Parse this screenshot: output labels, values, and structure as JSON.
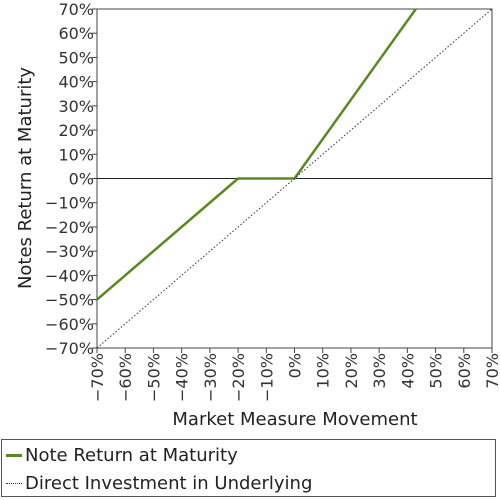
{
  "chart_data": {
    "type": "line",
    "xlabel": "Market Measure Movement",
    "ylabel": "Notes Return at Maturity",
    "xlim": [
      -70,
      70
    ],
    "ylim": [
      -70,
      70
    ],
    "x_ticks": [
      -70,
      -60,
      -50,
      -40,
      -30,
      -20,
      -10,
      0,
      10,
      20,
      30,
      40,
      50,
      60,
      70
    ],
    "y_ticks": [
      70,
      60,
      50,
      40,
      30,
      20,
      10,
      0,
      -10,
      -20,
      -30,
      -40,
      -50,
      -60,
      -70
    ],
    "tick_suffix": "%",
    "grid": false,
    "zero_line": true,
    "legend_position": "bottom",
    "series": [
      {
        "name": "Note Return at Maturity",
        "color": "#5a8a1e",
        "style": "solid",
        "points": [
          [
            -70,
            -50
          ],
          [
            -20,
            0
          ],
          [
            0,
            0
          ],
          [
            43,
            70
          ]
        ]
      },
      {
        "name": "Direct Investment in Underlying",
        "color": "#333333",
        "style": "dotted",
        "points": [
          [
            -70,
            -70
          ],
          [
            70,
            70
          ]
        ]
      }
    ]
  }
}
